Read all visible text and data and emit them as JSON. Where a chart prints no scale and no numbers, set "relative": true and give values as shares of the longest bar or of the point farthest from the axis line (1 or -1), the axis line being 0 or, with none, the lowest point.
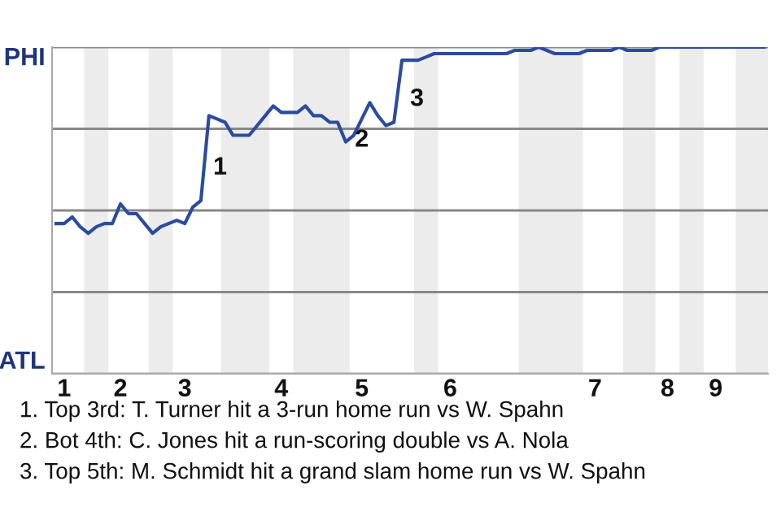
{
  "chart_data": {
    "type": "line",
    "relative": true,
    "categories": [
      null,
      "1",
      null,
      null,
      null,
      null,
      null,
      null,
      "2",
      null,
      null,
      null,
      null,
      null,
      null,
      null,
      "3",
      null,
      null,
      null,
      null,
      null,
      null,
      null,
      null,
      null,
      null,
      null,
      "4",
      null,
      null,
      null,
      null,
      null,
      null,
      null,
      null,
      null,
      "5",
      null,
      null,
      null,
      null,
      null,
      null,
      null,
      null,
      null,
      null,
      "6",
      null,
      null,
      null,
      null,
      null,
      null,
      null,
      null,
      null,
      null,
      null,
      null,
      null,
      null,
      null,
      null,
      null,
      "7",
      null,
      null,
      null,
      null,
      null,
      null,
      null,
      null,
      "8",
      null,
      null,
      null,
      null,
      null,
      "9",
      null,
      null,
      null,
      null,
      null,
      null
    ],
    "series": [
      {
        "color": "#2b4c9e",
        "values": [
          0.46,
          0.46,
          0.48,
          0.45,
          0.43,
          0.45,
          0.46,
          0.46,
          0.52,
          0.49,
          0.49,
          0.46,
          0.43,
          0.45,
          0.46,
          0.47,
          0.46,
          0.51,
          0.53,
          0.79,
          0.78,
          0.77,
          0.73,
          0.73,
          0.73,
          0.76,
          0.79,
          0.82,
          0.8,
          0.8,
          0.8,
          0.82,
          0.79,
          0.79,
          0.77,
          0.77,
          0.71,
          0.73,
          0.78,
          0.83,
          0.79,
          0.76,
          0.77,
          0.96,
          0.96,
          0.96,
          0.97,
          0.98,
          0.98,
          0.98,
          0.98,
          0.98,
          0.98,
          0.98,
          0.98,
          0.98,
          0.98,
          0.99,
          0.99,
          0.99,
          1,
          0.99,
          0.98,
          0.98,
          0.98,
          0.98,
          0.99,
          0.99,
          0.99,
          0.99,
          1,
          0.99,
          0.99,
          0.99,
          0.99,
          1,
          1,
          1,
          1,
          1,
          1,
          1,
          1,
          1,
          1,
          1,
          1,
          1,
          1
        ]
      }
    ],
    "ref_lines": [
      {
        "axis": "y",
        "value": 1,
        "label": "PHI",
        "color": "#888888"
      },
      {
        "axis": "y",
        "value": 0.75,
        "label": null,
        "color": "#888888"
      },
      {
        "axis": "y",
        "value": 0.5,
        "label": null,
        "color": "#888888"
      },
      {
        "axis": "y",
        "value": 0.25,
        "label": null,
        "color": "#888888"
      },
      {
        "axis": "y",
        "value": 0,
        "label": "ATL",
        "color": "#aaaaaa"
      }
    ],
    "legend": false,
    "marker": "none",
    "line_style": "solid",
    "annotations": [
      "1",
      "2",
      "3",
      "1. Top 3rd: T. Turner hit a 3-run home run vs W. Spahn",
      "2. Bot 4th: C. Jones hit a run-scoring double vs A. Nola",
      "3. Top 5th: M. Schmidt hit a grand slam home run vs W. Spahn"
    ]
  }
}
